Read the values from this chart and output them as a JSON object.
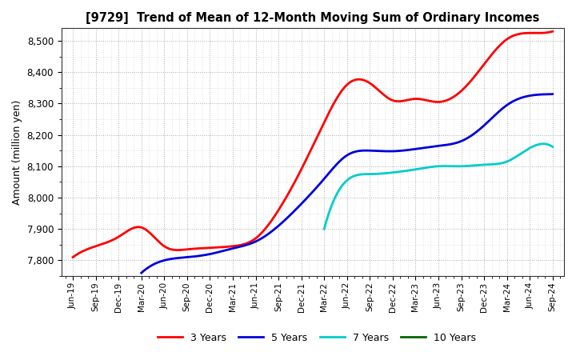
{
  "title": "[9729]  Trend of Mean of 12-Month Moving Sum of Ordinary Incomes",
  "ylabel": "Amount (million yen)",
  "background_color": "#ffffff",
  "plot_bg_color": "#ffffff",
  "grid_color": "#999999",
  "ylim": [
    7750,
    8540
  ],
  "yticks": [
    7800,
    7900,
    8000,
    8100,
    8200,
    8300,
    8400,
    8500
  ],
  "series": {
    "3 Years": {
      "color": "#ff0000",
      "data": {
        "Jun-19": 7810,
        "Sep-19": 7845,
        "Dec-19": 7875,
        "Mar-20": 7905,
        "Jun-20": 7845,
        "Sep-20": 7835,
        "Dec-20": 7840,
        "Mar-21": 7845,
        "Jun-21": 7870,
        "Sep-21": 7960,
        "Dec-21": 8090,
        "Mar-22": 8240,
        "Jun-22": 8360,
        "Sep-22": 8365,
        "Dec-22": 8310,
        "Mar-23": 8315,
        "Jun-23": 8305,
        "Sep-23": 8340,
        "Dec-23": 8425,
        "Mar-24": 8505,
        "Jun-24": 8525,
        "Sep-24": 8530
      }
    },
    "5 Years": {
      "color": "#0000dd",
      "data": {
        "Jun-19": null,
        "Sep-19": null,
        "Dec-19": null,
        "Mar-20": 7760,
        "Jun-20": 7800,
        "Sep-20": 7810,
        "Dec-20": 7820,
        "Mar-21": 7838,
        "Jun-21": 7860,
        "Sep-21": 7910,
        "Dec-21": 7980,
        "Mar-22": 8060,
        "Jun-22": 8135,
        "Sep-22": 8150,
        "Dec-22": 8148,
        "Mar-23": 8155,
        "Jun-23": 8165,
        "Sep-23": 8180,
        "Dec-23": 8230,
        "Mar-24": 8295,
        "Jun-24": 8325,
        "Sep-24": 8330
      }
    },
    "7 Years": {
      "color": "#00cccc",
      "data": {
        "Jun-19": null,
        "Sep-19": null,
        "Dec-19": null,
        "Mar-20": null,
        "Jun-20": null,
        "Sep-20": null,
        "Dec-20": null,
        "Mar-21": null,
        "Jun-21": null,
        "Sep-21": null,
        "Dec-21": null,
        "Mar-22": 7900,
        "Jun-22": 8055,
        "Sep-22": 8075,
        "Dec-22": 8080,
        "Mar-23": 8090,
        "Jun-23": 8100,
        "Sep-23": 8100,
        "Dec-23": 8105,
        "Mar-24": 8115,
        "Jun-24": 8158,
        "Sep-24": 8162
      }
    },
    "10 Years": {
      "color": "#006600",
      "data": {
        "Jun-19": null,
        "Sep-19": null,
        "Dec-19": null,
        "Mar-20": null,
        "Jun-20": null,
        "Sep-20": null,
        "Dec-20": null,
        "Mar-21": null,
        "Jun-21": null,
        "Sep-21": null,
        "Dec-21": null,
        "Mar-22": null,
        "Jun-22": null,
        "Sep-22": null,
        "Dec-22": null,
        "Mar-23": null,
        "Jun-23": null,
        "Sep-23": null,
        "Dec-23": null,
        "Mar-24": null,
        "Jun-24": null,
        "Sep-24": null
      }
    }
  },
  "x_labels": [
    "Jun-19",
    "Sep-19",
    "Dec-19",
    "Mar-20",
    "Jun-20",
    "Sep-20",
    "Dec-20",
    "Mar-21",
    "Jun-21",
    "Sep-21",
    "Dec-21",
    "Mar-22",
    "Jun-22",
    "Sep-22",
    "Dec-22",
    "Mar-23",
    "Jun-23",
    "Sep-23",
    "Dec-23",
    "Mar-24",
    "Jun-24",
    "Sep-24"
  ],
  "legend_labels": [
    "3 Years",
    "5 Years",
    "7 Years",
    "10 Years"
  ],
  "legend_colors": [
    "#ff0000",
    "#0000dd",
    "#00cccc",
    "#006600"
  ]
}
